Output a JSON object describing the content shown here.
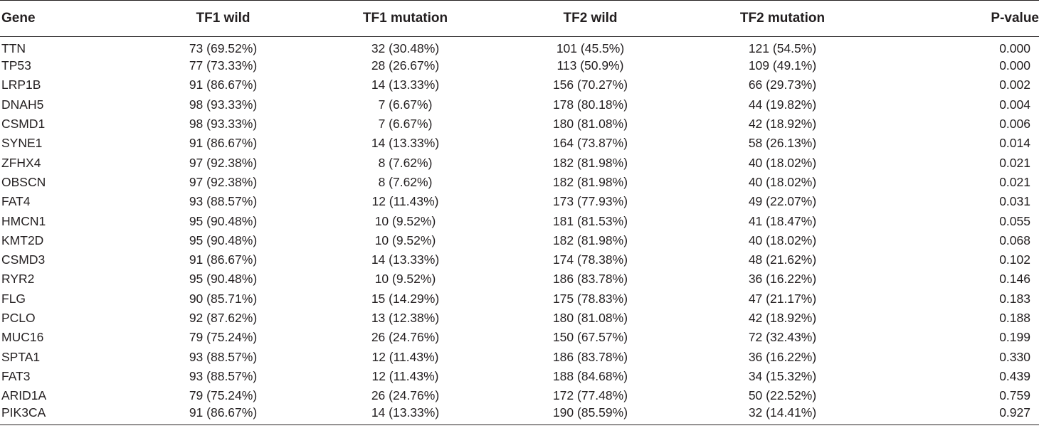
{
  "table": {
    "headers": [
      "Gene",
      "TF1 wild",
      "TF1 mutation",
      "TF2 wild",
      "TF2 mutation",
      "P-value"
    ],
    "rows": [
      [
        "TTN",
        "73 (69.52%)",
        "32 (30.48%)",
        "101 (45.5%)",
        "121 (54.5%)",
        "0.000"
      ],
      [
        "TP53",
        "77 (73.33%)",
        "28 (26.67%)",
        "113 (50.9%)",
        "109 (49.1%)",
        "0.000"
      ],
      [
        "LRP1B",
        "91 (86.67%)",
        "14 (13.33%)",
        "156 (70.27%)",
        "66 (29.73%)",
        "0.002"
      ],
      [
        "DNAH5",
        "98 (93.33%)",
        "7 (6.67%)",
        "178 (80.18%)",
        "44 (19.82%)",
        "0.004"
      ],
      [
        "CSMD1",
        "98 (93.33%)",
        "7 (6.67%)",
        "180 (81.08%)",
        "42 (18.92%)",
        "0.006"
      ],
      [
        "SYNE1",
        "91 (86.67%)",
        "14 (13.33%)",
        "164 (73.87%)",
        "58 (26.13%)",
        "0.014"
      ],
      [
        "ZFHX4",
        "97 (92.38%)",
        "8 (7.62%)",
        "182 (81.98%)",
        "40 (18.02%)",
        "0.021"
      ],
      [
        "OBSCN",
        "97 (92.38%)",
        "8 (7.62%)",
        "182 (81.98%)",
        "40 (18.02%)",
        "0.021"
      ],
      [
        "FAT4",
        "93 (88.57%)",
        "12 (11.43%)",
        "173 (77.93%)",
        "49 (22.07%)",
        "0.031"
      ],
      [
        "HMCN1",
        "95 (90.48%)",
        "10 (9.52%)",
        "181 (81.53%)",
        "41 (18.47%)",
        "0.055"
      ],
      [
        "KMT2D",
        "95 (90.48%)",
        "10 (9.52%)",
        "182 (81.98%)",
        "40 (18.02%)",
        "0.068"
      ],
      [
        "CSMD3",
        "91 (86.67%)",
        "14 (13.33%)",
        "174 (78.38%)",
        "48 (21.62%)",
        "0.102"
      ],
      [
        "RYR2",
        "95 (90.48%)",
        "10 (9.52%)",
        "186 (83.78%)",
        "36 (16.22%)",
        "0.146"
      ],
      [
        "FLG",
        "90 (85.71%)",
        "15 (14.29%)",
        "175 (78.83%)",
        "47 (21.17%)",
        "0.183"
      ],
      [
        "PCLO",
        "92 (87.62%)",
        "13 (12.38%)",
        "180 (81.08%)",
        "42 (18.92%)",
        "0.188"
      ],
      [
        "MUC16",
        "79 (75.24%)",
        "26 (24.76%)",
        "150 (67.57%)",
        "72 (32.43%)",
        "0.199"
      ],
      [
        "SPTA1",
        "93 (88.57%)",
        "12 (11.43%)",
        "186 (83.78%)",
        "36 (16.22%)",
        "0.330"
      ],
      [
        "FAT3",
        "93 (88.57%)",
        "12 (11.43%)",
        "188 (84.68%)",
        "34 (15.32%)",
        "0.439"
      ],
      [
        "ARID1A",
        "79 (75.24%)",
        "26 (24.76%)",
        "172 (77.48%)",
        "50 (22.52%)",
        "0.759"
      ],
      [
        "PIK3CA",
        "91 (86.67%)",
        "14 (13.33%)",
        "190 (85.59%)",
        "32 (14.41%)",
        "0.927"
      ]
    ]
  }
}
